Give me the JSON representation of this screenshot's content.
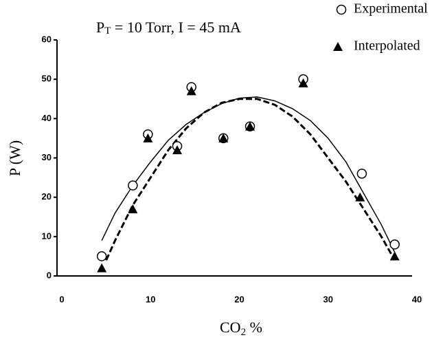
{
  "chart_data": {
    "type": "scatter",
    "title_parts": [
      "P",
      "T",
      " = 10 Torr, I = 45 mA"
    ],
    "x_label_parts": [
      "CO",
      "2",
      " %"
    ],
    "y_label": "P (W)",
    "xlim": [
      0,
      40
    ],
    "xticks": [
      0,
      10,
      20,
      30,
      40
    ],
    "ylim": [
      0,
      60
    ],
    "yticks": [
      0,
      10,
      20,
      30,
      40,
      50,
      60
    ],
    "series": [
      {
        "name": "Experimental",
        "marker": "circle",
        "color": "#000000",
        "x": [
          4.5,
          8,
          9.7,
          13,
          14.6,
          18.2,
          21.2,
          27.2,
          33.8,
          37.5
        ],
        "values": [
          5,
          23,
          36,
          33,
          48,
          35,
          38,
          50,
          26,
          8
        ]
      },
      {
        "name": "Interpolated",
        "marker": "triangle",
        "color": "#000000",
        "x": [
          4.5,
          8,
          9.7,
          13,
          14.6,
          18.2,
          21.2,
          27.2,
          33.6,
          37.5
        ],
        "values": [
          2,
          17,
          35,
          32,
          47,
          35,
          38,
          49,
          20,
          5
        ]
      }
    ],
    "curves": [
      {
        "style": "solid",
        "color": "#000000",
        "x": [
          4.5,
          6,
          8,
          10,
          12,
          14,
          16,
          18,
          20,
          22,
          24,
          26,
          28,
          30,
          32,
          34,
          36,
          37.5
        ],
        "values": [
          9,
          16,
          23,
          29,
          34.5,
          38.5,
          41.5,
          43.8,
          45.2,
          45.5,
          44.5,
          42.5,
          39.5,
          35,
          29,
          21,
          13,
          6
        ]
      },
      {
        "style": "dashed",
        "color": "#000000",
        "x": [
          5,
          6,
          8,
          10,
          12,
          14,
          16,
          18,
          20,
          22,
          24,
          26,
          28,
          30,
          32,
          34,
          36,
          37.5
        ],
        "values": [
          4,
          9,
          18,
          25,
          32,
          37.5,
          41.5,
          44,
          45,
          45,
          43.5,
          40.5,
          36,
          30,
          24,
          17,
          10,
          4
        ]
      }
    ]
  }
}
